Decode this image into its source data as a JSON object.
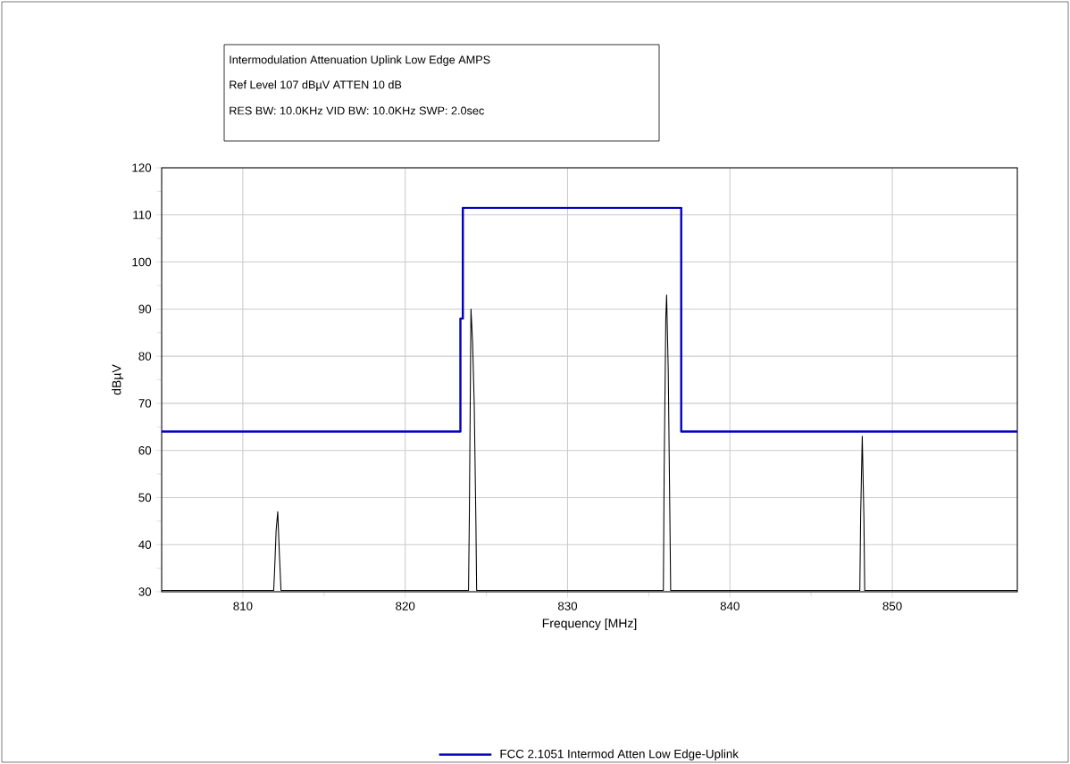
{
  "chart_data": {
    "type": "line",
    "title": "Intermodulation Attenuation Uplink Low Edge AMPS",
    "subtitle": "Ref Level 107 dBµV    ATTEN 10 dB",
    "annotations": [
      "RES BW: 10.0KHz  VID BW: 10.0KHz  SWP: 2.0sec"
    ],
    "xlabel": "Frequency [MHz]",
    "ylabel": "dBµV",
    "xlim": [
      805,
      857.7
    ],
    "xticks": [
      810,
      820,
      830,
      840,
      850
    ],
    "ylim": [
      30,
      120
    ],
    "yticks": [
      30,
      40,
      50,
      60,
      70,
      80,
      90,
      100,
      110,
      120
    ],
    "grid": true,
    "legend": "bottom",
    "marker": "none",
    "line_style": "solid",
    "series": [
      {
        "name": "FCC 2.1051 Intermod Atten Low Edge-Uplink",
        "color": "#0000c0",
        "x": [
          805,
          823.4,
          823.4,
          823.55,
          823.55,
          837.0,
          837.0,
          857.7
        ],
        "values": [
          64,
          64,
          88,
          88,
          111.5,
          111.5,
          64,
          64
        ]
      },
      {
        "color": "#000000",
        "x": [
          805,
          811.9,
          811.95,
          812.05,
          812.15,
          812.25,
          812.35,
          823.9,
          823.95,
          824.05,
          824.15,
          824.25,
          824.35,
          824.4,
          835.9,
          835.95,
          836.05,
          836.1,
          836.2,
          836.3,
          836.35,
          848.0,
          848.05,
          848.15,
          848.25,
          848.3,
          857.7
        ],
        "values": [
          30.3,
          30.3,
          34,
          43,
          47,
          38,
          30.3,
          30.3,
          46,
          90,
          83,
          70,
          46,
          30.3,
          30.3,
          56,
          88,
          93,
          77,
          46,
          30.3,
          30.3,
          46,
          63,
          46,
          30.3,
          30.3
        ]
      }
    ]
  }
}
